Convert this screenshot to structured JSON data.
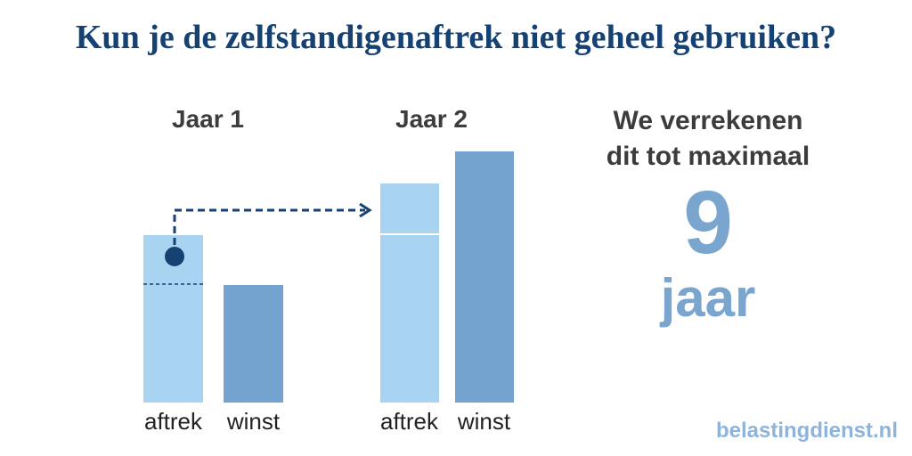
{
  "title": "Kun je de zelfstandigenaftrek niet geheel gebruiken?",
  "years": [
    {
      "label": "Jaar 1",
      "bars": [
        {
          "label": "aftrek"
        },
        {
          "label": "winst"
        }
      ]
    },
    {
      "label": "Jaar 2",
      "bars": [
        {
          "label": "aftrek"
        },
        {
          "label": "winst"
        }
      ]
    }
  ],
  "right": {
    "line1": "We verrekenen",
    "line2": "dit tot maximaal",
    "number": "9",
    "unit": "jaar"
  },
  "brand": "belastingdienst.nl",
  "colors": {
    "title": "#154273",
    "aftrek": "#a8d4f2",
    "winst": "#74a3cf",
    "arrow": "#154273",
    "number": "#7aa5cf",
    "brand": "#8fb4dc"
  }
}
